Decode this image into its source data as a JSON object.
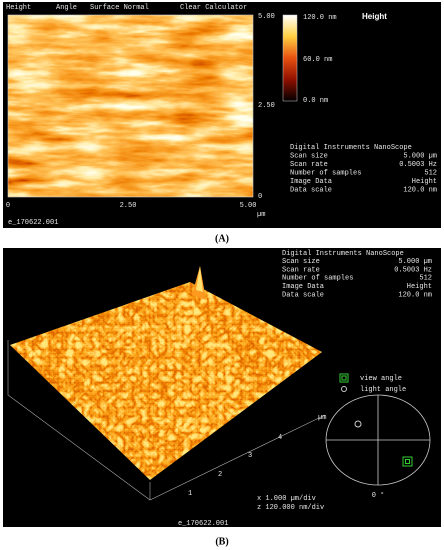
{
  "panel_a": {
    "menu": [
      "Height",
      "Angle",
      "Surface Normal",
      "Clear Calculator"
    ],
    "right_ticks": [
      "5.00",
      "2.50",
      "0"
    ],
    "bottom_ticks": [
      "0",
      "2.50",
      "5.00"
    ],
    "unit": "µm",
    "colorbar": [
      "120.0 nm",
      "60.0 nm",
      "0.0 nm"
    ],
    "colorbar_title": "Height",
    "info_title": "Digital Instruments NanoScope",
    "info": [
      [
        "Scan size",
        "5.000 µm"
      ],
      [
        "Scan rate",
        "0.5003 Hz"
      ],
      [
        "Number of samples",
        "512"
      ],
      [
        "Image Data",
        "Height"
      ],
      [
        "Data scale",
        "120.0 nm"
      ]
    ],
    "filename": "e_170622.001",
    "label": "(A)"
  },
  "panel_b": {
    "info_title": "Digital Instruments NanoScope",
    "info": [
      [
        "Scan size",
        "5.000 µm"
      ],
      [
        "Scan rate",
        "0.5003 Hz"
      ],
      [
        "Number of samples",
        "512"
      ],
      [
        "Image Data",
        "Height"
      ],
      [
        "Data scale",
        "120.0 nm"
      ]
    ],
    "view_angle": "view angle",
    "light_angle": "light angle",
    "dial_label": "0 °",
    "axis_ticks": [
      "1",
      "2",
      "3",
      "4"
    ],
    "unit": "µm",
    "x_scale": "x 1.000 µm/div",
    "z_scale": "z 120.000 nm/div",
    "filename": "e_170622.001",
    "label": "(B)"
  }
}
